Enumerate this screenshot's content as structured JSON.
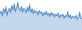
{
  "chart_data": {
    "type": "line",
    "color": "#3b7cc4",
    "grid": false,
    "tick_labels": false,
    "ylim": [
      0,
      100
    ],
    "categories": [
      null,
      null,
      null,
      null,
      null,
      null,
      null,
      null,
      null,
      null,
      null,
      null,
      null,
      null,
      null,
      null,
      null,
      null,
      null,
      null,
      null,
      null,
      null,
      null,
      null,
      null,
      null,
      null,
      null,
      null,
      null,
      null,
      null,
      null,
      null,
      null,
      null,
      null,
      null,
      null,
      null,
      null,
      null,
      null,
      null,
      null,
      null,
      null,
      null,
      null,
      null,
      null,
      null,
      null,
      null,
      null,
      null,
      null,
      null,
      null,
      null,
      null,
      null,
      null,
      null,
      null,
      null,
      null,
      null,
      null
    ],
    "values": [
      55,
      62,
      48,
      70,
      58,
      75,
      50,
      66,
      72,
      60,
      80,
      68,
      85,
      62,
      74,
      90,
      70,
      65,
      78,
      60,
      72,
      68,
      58,
      75,
      64,
      82,
      60,
      70,
      55,
      66,
      58,
      62,
      50,
      64,
      56,
      60,
      48,
      58,
      52,
      62,
      50,
      55,
      46,
      58,
      50,
      54,
      44,
      52,
      48,
      56,
      42,
      50,
      46,
      52,
      40,
      48,
      45,
      60,
      42,
      50,
      38,
      46,
      44,
      40,
      48,
      36,
      42,
      58,
      40,
      38
    ]
  }
}
